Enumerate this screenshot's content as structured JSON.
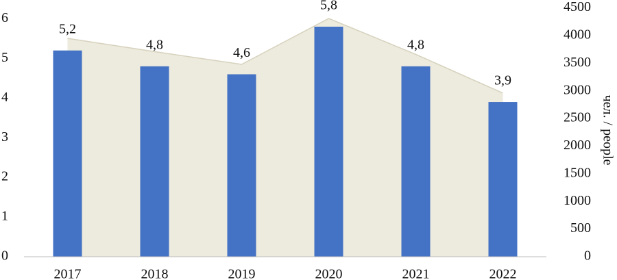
{
  "chart_data": {
    "type": "bar",
    "categories": [
      "2017",
      "2018",
      "2019",
      "2020",
      "2021",
      "2022"
    ],
    "series": [
      {
        "type": "area",
        "axis": "y2",
        "color": "#edeade",
        "values": [
          3950,
          3710,
          3480,
          4310,
          3660,
          2960
        ]
      },
      {
        "type": "bar",
        "color": "#4472c4",
        "values": [
          5.2,
          4.8,
          4.6,
          5.8,
          4.8,
          3.9
        ],
        "value_labels": [
          "5,2",
          "4,8",
          "4,6",
          "5,8",
          "4,8",
          "3,9"
        ]
      }
    ],
    "ylim": [
      0,
      6.3
    ],
    "yticks": [
      0,
      1,
      2,
      3,
      4,
      5,
      6
    ],
    "y2lim": [
      0,
      4520
    ],
    "y2ticks": [
      0,
      500,
      1000,
      1500,
      2000,
      2500,
      3000,
      3500,
      4000,
      4500
    ],
    "y2label": "чел. / people"
  }
}
